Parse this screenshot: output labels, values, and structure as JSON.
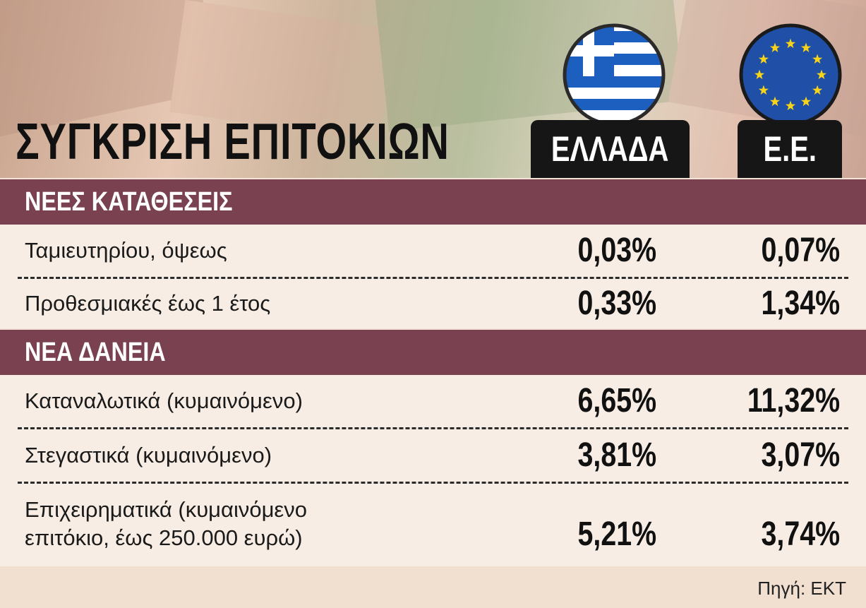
{
  "header": {
    "title": "ΣΥΓΚΡΙΣΗ ΕΠΙΤΟΚΙΩΝ",
    "columns": [
      "ΕΛΛΑΔΑ",
      "Ε.Ε."
    ]
  },
  "sections": [
    {
      "title": "ΝΕΕΣ ΚΑΤΑΘΕΣΕΙΣ",
      "rows": [
        {
          "label": "Ταμιευτηρίου, όψεως",
          "values": [
            "0,03%",
            "0,07%"
          ]
        },
        {
          "label": "Προθεσμιακές έως 1 έτος",
          "values": [
            "0,33%",
            "1,34%"
          ]
        }
      ]
    },
    {
      "title": "ΝΕΑ ΔΑΝΕΙΑ",
      "rows": [
        {
          "label": "Καταναλωτικά (κυμαινόμενο)",
          "values": [
            "6,65%",
            "11,32%"
          ]
        },
        {
          "label": "Στεγαστικά (κυμαινόμενο)",
          "values": [
            "3,81%",
            "3,07%"
          ]
        },
        {
          "label": "Επιχειρηματικά (κυμαινόμενο\nεπιτόκιο, έως 250.000 ευρώ)",
          "values": [
            "5,21%",
            "3,74%"
          ]
        }
      ]
    }
  ],
  "source": "Πηγή: ΕΚΤ"
}
